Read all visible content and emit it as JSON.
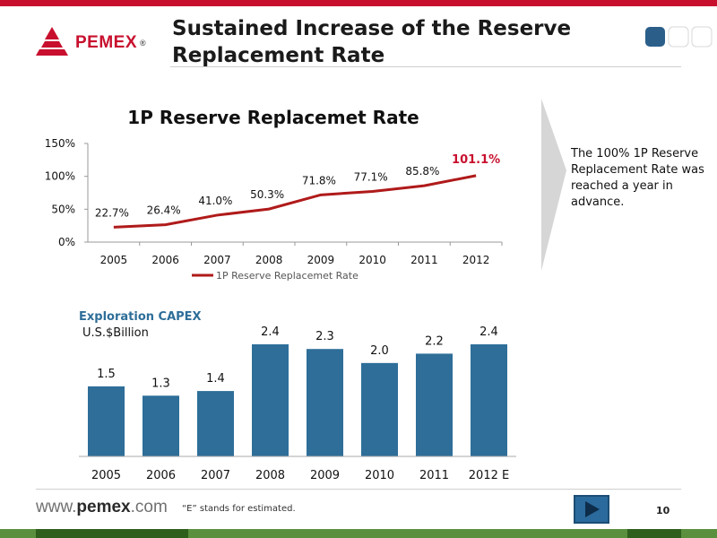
{
  "header": {
    "title": "Sustained Increase of the Reserve Replacement Rate",
    "logo_text": "PEMEX",
    "logo_mark": "®"
  },
  "colors": {
    "accent_red": "#c8102e",
    "bar_blue": "#2e6e99",
    "line_red": "#b01a1a"
  },
  "side_note": "The 100% 1P Reserve Replacement Rate was reached a year in advance.",
  "chart_data": [
    {
      "type": "line",
      "title": "1P Reserve Replacemet Rate",
      "categories": [
        "2005",
        "2006",
        "2007",
        "2008",
        "2009",
        "2010",
        "2011",
        "2012"
      ],
      "series": [
        {
          "name": "1P Reserve Replacemet Rate",
          "values": [
            22.7,
            26.4,
            41.0,
            50.3,
            71.8,
            77.1,
            85.8,
            101.1
          ],
          "labels": [
            "22.7%",
            "26.4%",
            "41.0%",
            "50.3%",
            "71.8%",
            "77.1%",
            "85.8%",
            "101.1%"
          ]
        }
      ],
      "ylim": [
        0,
        150
      ],
      "yticks": [
        "0%",
        "50%",
        "100%",
        "150%"
      ],
      "ytick_values": [
        0,
        50,
        100,
        150
      ],
      "legend_position": "bottom",
      "highlight_last": true
    },
    {
      "type": "bar",
      "title": "Exploration CAPEX",
      "subtitle": "U.S.$Billion",
      "categories": [
        "2005",
        "2006",
        "2007",
        "2008",
        "2009",
        "2010",
        "2011",
        "2012 E"
      ],
      "values": [
        1.5,
        1.3,
        1.4,
        2.4,
        2.3,
        2.0,
        2.2,
        2.4
      ],
      "labels": [
        "1.5",
        "1.3",
        "1.4",
        "2.4",
        "2.3",
        "2.0",
        "2.2",
        "2.4"
      ]
    }
  ],
  "footer": {
    "url_prefix": "www.",
    "url_domain": "pemex",
    "url_suffix": ".com",
    "note": "“E” stands for estimated.",
    "page_number": "10"
  }
}
